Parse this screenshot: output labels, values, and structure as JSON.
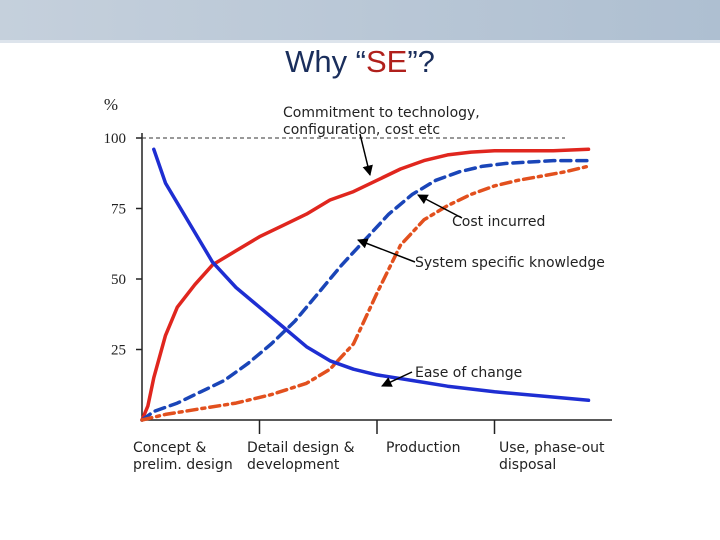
{
  "slide": {
    "title_prefix": "Why “",
    "title_highlight": "SE",
    "title_suffix": "”?",
    "colors": {
      "title": "#1a2e5c",
      "highlight": "#b0201c",
      "bar": "#b4c3d3"
    }
  },
  "chart_data": {
    "type": "line",
    "title": "Why “SE”?",
    "ylabel": "%",
    "ylim": [
      0,
      100
    ],
    "yticks": [
      25,
      50,
      75,
      100
    ],
    "reference_line": 100,
    "xlim": [
      0,
      4
    ],
    "phases": [
      {
        "line1": "Concept &",
        "line2": "prelim. design"
      },
      {
        "line1": "Detail design &",
        "line2": "development"
      },
      {
        "line1": "Production",
        "line2": ""
      },
      {
        "line1": "Use, phase-out",
        "line2": "disposal"
      }
    ],
    "series": [
      {
        "name": "Commitment to technology, configuration, cost etc",
        "color": "#e0261e",
        "style": "solid",
        "x": [
          0,
          0.05,
          0.1,
          0.2,
          0.3,
          0.45,
          0.6,
          0.8,
          1.0,
          1.2,
          1.4,
          1.6,
          1.8,
          2.0,
          2.2,
          2.4,
          2.6,
          2.8,
          3.0,
          3.2,
          3.5,
          3.8
        ],
        "y": [
          0,
          5,
          15,
          30,
          40,
          48,
          55,
          60,
          65,
          69,
          73,
          78,
          81,
          85,
          89,
          92,
          94,
          95,
          95.5,
          95.5,
          95.5,
          96
        ]
      },
      {
        "name": "System specific knowledge",
        "color": "#1a45b8",
        "style": "dashed",
        "x": [
          0,
          0.1,
          0.3,
          0.5,
          0.7,
          0.9,
          1.1,
          1.3,
          1.5,
          1.7,
          1.9,
          2.1,
          2.3,
          2.5,
          2.7,
          2.9,
          3.1,
          3.3,
          3.5,
          3.8
        ],
        "y": [
          0,
          3,
          6,
          10,
          14,
          20,
          27,
          35,
          45,
          55,
          64,
          73,
          80,
          85,
          88,
          90,
          91,
          91.5,
          92,
          92
        ]
      },
      {
        "name": "Cost incurred",
        "color": "#e2501e",
        "style": "dashdot",
        "x": [
          0,
          0.2,
          0.5,
          0.8,
          1.1,
          1.4,
          1.6,
          1.8,
          2.0,
          2.2,
          2.4,
          2.6,
          2.8,
          3.0,
          3.2,
          3.4,
          3.6,
          3.8
        ],
        "y": [
          0,
          2,
          4,
          6,
          9,
          13,
          18,
          27,
          45,
          62,
          71,
          76,
          80,
          83,
          85,
          86.5,
          88,
          90
        ]
      },
      {
        "name": "Ease of change",
        "color": "#1e2ed2",
        "style": "solid",
        "x": [
          0.1,
          0.2,
          0.4,
          0.6,
          0.8,
          1.0,
          1.2,
          1.4,
          1.6,
          1.8,
          2.0,
          2.3,
          2.6,
          3.0,
          3.4,
          3.8
        ],
        "y": [
          96,
          84,
          70,
          56,
          47,
          40,
          33,
          26,
          21,
          18,
          16,
          14,
          12,
          10,
          8.5,
          7
        ]
      }
    ],
    "annotations": [
      {
        "text_line1": "Commitment to technology,",
        "text_line2": "configuration, cost etc"
      },
      {
        "text_line1": "Cost incurred"
      },
      {
        "text_line1": "System specific knowledge"
      },
      {
        "text_line1": "Ease of change"
      }
    ]
  }
}
